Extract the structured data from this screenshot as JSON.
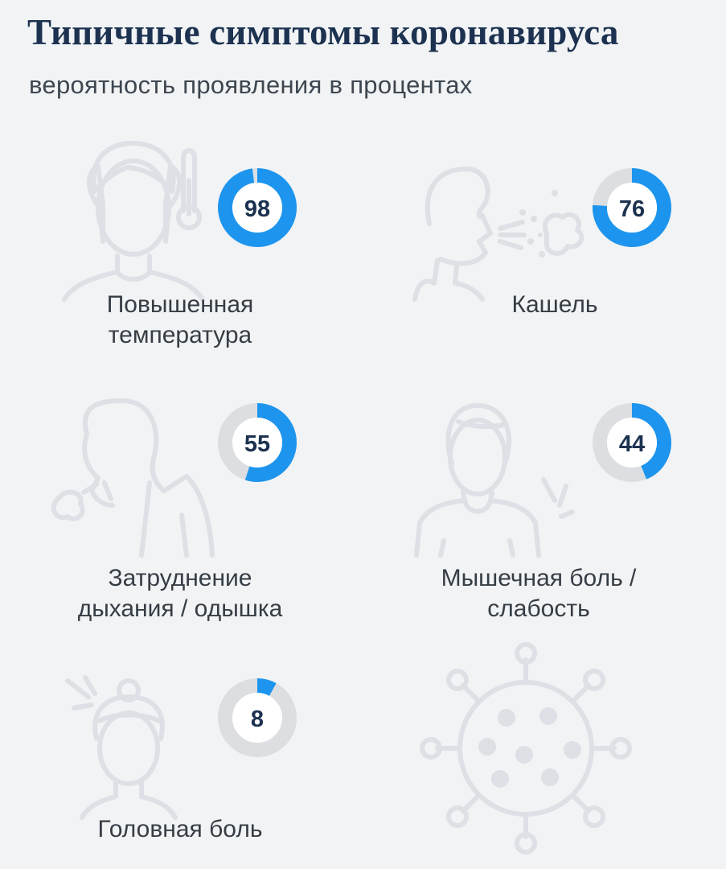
{
  "header": {
    "title": "Типичные симптомы коронавируса",
    "subtitle": "вероятность проявления в процентах"
  },
  "colors": {
    "accent": "#1d95ee",
    "track": "#dcdee2",
    "illustration": "#dde0e4",
    "title": "#1c3250",
    "text": "#363d44",
    "background": "#f1f3f5"
  },
  "chart_data": {
    "type": "donut",
    "unit": "%",
    "categories": [
      "Повышенная температура",
      "Кашель",
      "Затруднение дыхания / одышка",
      "Мышечная боль / слабость",
      "Головная боль"
    ],
    "values": [
      98,
      76,
      55,
      44,
      8
    ],
    "ylim": [
      0,
      100
    ],
    "items": [
      {
        "label": "Повышенная\nтемпература",
        "value": 98,
        "value_label": "98",
        "icon": "woman-with-thermometer-icon"
      },
      {
        "label": "Кашель",
        "value": 76,
        "value_label": "76",
        "icon": "man-coughing-icon"
      },
      {
        "label": "Затруднение\nдыхания / одышка",
        "value": 55,
        "value_label": "55",
        "icon": "woman-short-of-breath-icon"
      },
      {
        "label": "Мышечная боль /\nслабость",
        "value": 44,
        "value_label": "44",
        "icon": "man-shoulder-pain-icon"
      },
      {
        "label": "Головная боль",
        "value": 8,
        "value_label": "8",
        "icon": "woman-headache-icon"
      }
    ],
    "decoration_icon": "virus-icon"
  }
}
